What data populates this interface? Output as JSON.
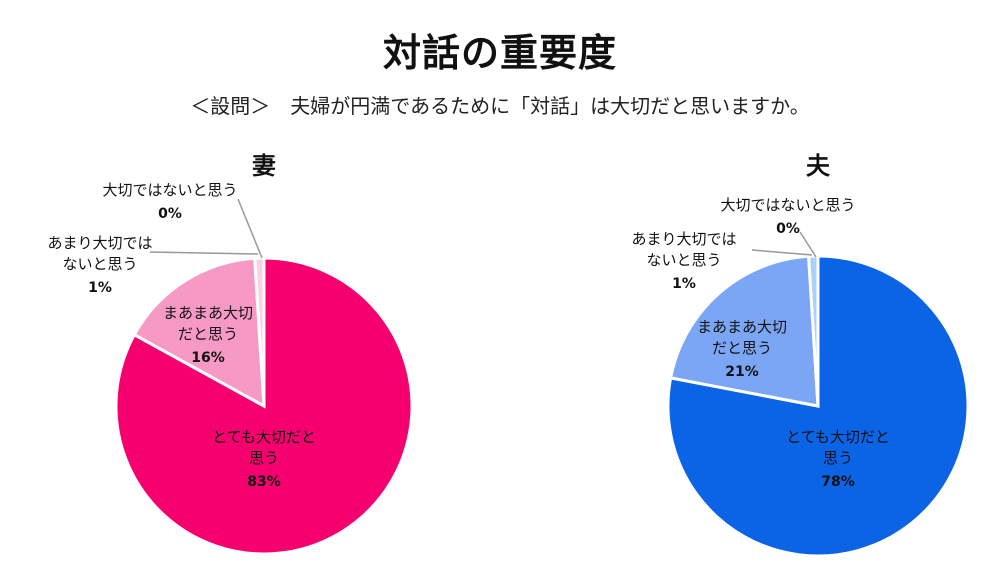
{
  "title": "対話の重要度",
  "subtitle": "＜設問＞　夫婦が円満であるために「対話」は大切だと思いますか。",
  "chart_data": [
    {
      "type": "pie",
      "title": "妻",
      "slices": [
        {
          "label": [
            "とても大切だと",
            "思う"
          ],
          "value": 83,
          "pct_label": "83%",
          "color": "#f5006e"
        },
        {
          "label": [
            "まあまあ大切",
            "だと思う"
          ],
          "value": 16,
          "pct_label": "16%",
          "color": "#f799c5"
        },
        {
          "label": [
            "あまり大切では",
            "ないと思う"
          ],
          "value": 1,
          "pct_label": "1%",
          "color": "#fad2e6"
        },
        {
          "label": [
            "大切ではないと思う"
          ],
          "value": 0,
          "pct_label": "0%",
          "color": "#fde6f1"
        }
      ]
    },
    {
      "type": "pie",
      "title": "夫",
      "slices": [
        {
          "label": [
            "とても大切だと",
            "思う"
          ],
          "value": 78,
          "pct_label": "78%",
          "color": "#0b63e5"
        },
        {
          "label": [
            "まあまあ大切",
            "だと思う"
          ],
          "value": 21,
          "pct_label": "21%",
          "color": "#7aa6f5"
        },
        {
          "label": [
            "あまり大切では",
            "ないと思う"
          ],
          "value": 1,
          "pct_label": "1%",
          "color": "#a9d2f7"
        },
        {
          "label": [
            "大切ではないと思う"
          ],
          "value": 0,
          "pct_label": "0%",
          "color": "#cfe6fb"
        }
      ]
    }
  ]
}
